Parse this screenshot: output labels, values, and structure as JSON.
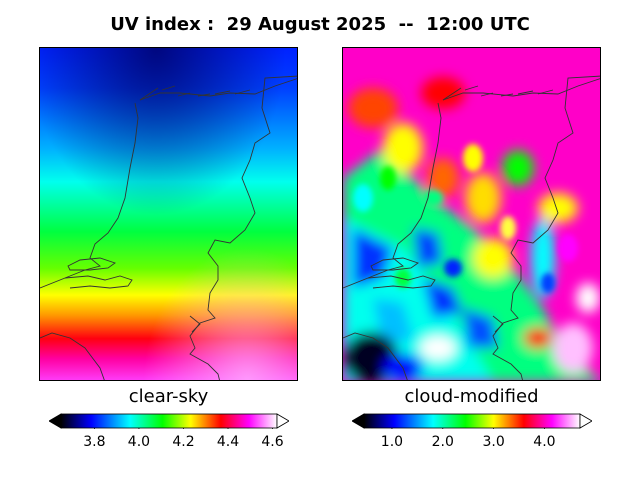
{
  "title": "UV index :  29 August 2025  --  12:00 UTC",
  "panels": [
    {
      "label": "clear-sky",
      "colorbar": {
        "min": 3.65,
        "max": 4.62,
        "ticks": [
          "3.8",
          "4.0",
          "4.2",
          "4.4",
          "4.6"
        ],
        "tick_values": [
          3.8,
          4.0,
          4.2,
          4.4,
          4.6
        ]
      }
    },
    {
      "label": "cloud-modified",
      "colorbar": {
        "min": 0.45,
        "max": 4.7,
        "ticks": [
          "1.0",
          "2.0",
          "3.0",
          "4.0"
        ],
        "tick_values": [
          1.0,
          2.0,
          3.0,
          4.0
        ]
      }
    }
  ],
  "colors": {
    "scale": [
      "#000000",
      "#0000ff",
      "#00ffff",
      "#00ff00",
      "#ffff00",
      "#ff0000",
      "#ff00ff",
      "#ffffff"
    ],
    "coastline": "#333333"
  }
}
